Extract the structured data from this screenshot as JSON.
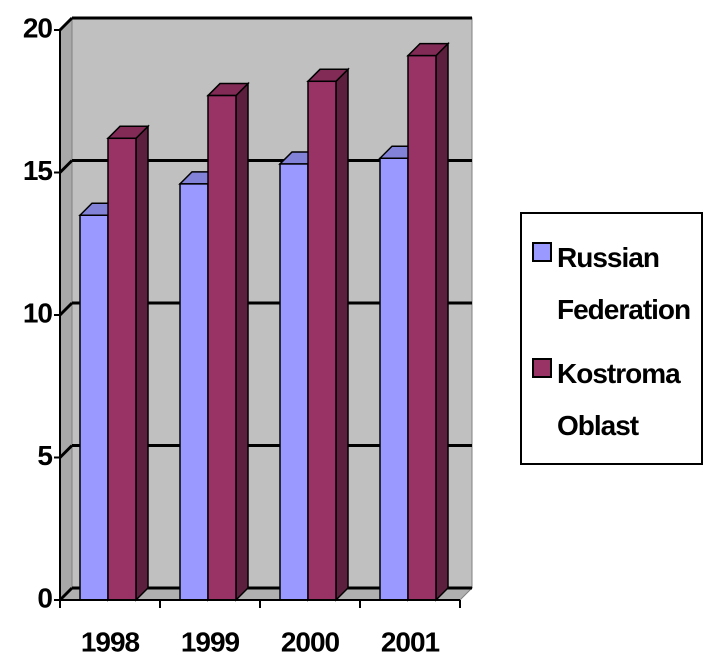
{
  "chart_data": {
    "type": "bar3d",
    "categories": [
      "1998",
      "1999",
      "2000",
      "2001"
    ],
    "series": [
      {
        "name": "Russian Federation",
        "color": "#9999ff",
        "values": [
          13.5,
          14.6,
          15.3,
          15.5
        ]
      },
      {
        "name": "Kostroma Oblast",
        "color": "#993366",
        "values": [
          16.2,
          17.7,
          18.2,
          19.1
        ]
      }
    ],
    "ylim": [
      0,
      20
    ],
    "yticks": [
      0,
      5,
      10,
      15,
      20
    ],
    "grid": true,
    "legend": "right"
  }
}
